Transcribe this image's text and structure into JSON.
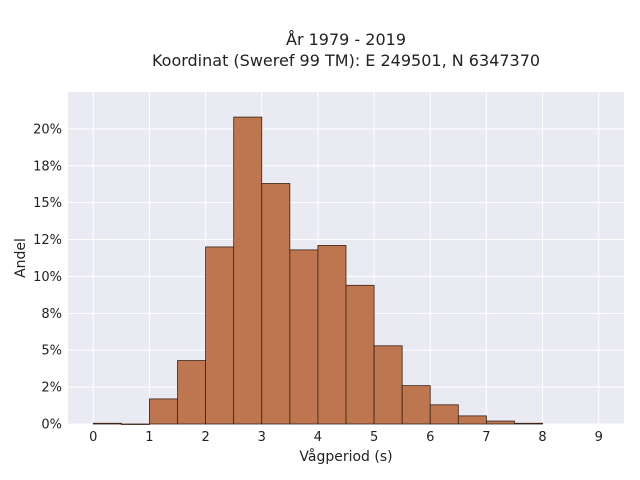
{
  "chart_data": {
    "type": "bar",
    "title_line1": "År 1979 - 2019",
    "title_line2": "Koordinat (Sweref 99 TM): E 249501, N 6347370",
    "xlabel": "Vågperiod (s)",
    "ylabel": "Andel",
    "bin_width": 0.5,
    "bin_starts": [
      0,
      0.5,
      1,
      1.5,
      2,
      2.5,
      3,
      3.5,
      4,
      4.5,
      5,
      5.5,
      6,
      6.5,
      7,
      7.5
    ],
    "values": [
      0.05,
      0.0,
      1.7,
      4.3,
      12.0,
      20.8,
      16.3,
      11.8,
      12.1,
      9.4,
      5.3,
      2.6,
      1.3,
      0.55,
      0.2,
      0.05
    ],
    "xlim": [
      -0.45,
      9.45
    ],
    "ylim": [
      0,
      22.5
    ],
    "xticks": [
      0,
      1,
      2,
      3,
      4,
      5,
      6,
      7,
      8,
      9
    ],
    "xtick_labels": [
      "0",
      "1",
      "2",
      "3",
      "4",
      "5",
      "6",
      "7",
      "8",
      "9"
    ],
    "yticks": [
      0,
      2.5,
      5,
      7.5,
      10,
      12.5,
      15,
      17.5,
      20
    ],
    "ytick_labels": [
      "0%",
      "2%",
      "5%",
      "8%",
      "10%",
      "12%",
      "15%",
      "18%",
      "20%"
    ],
    "grid": true,
    "bar_color": "#bd7650",
    "plot_background": "#eaeaf2"
  }
}
